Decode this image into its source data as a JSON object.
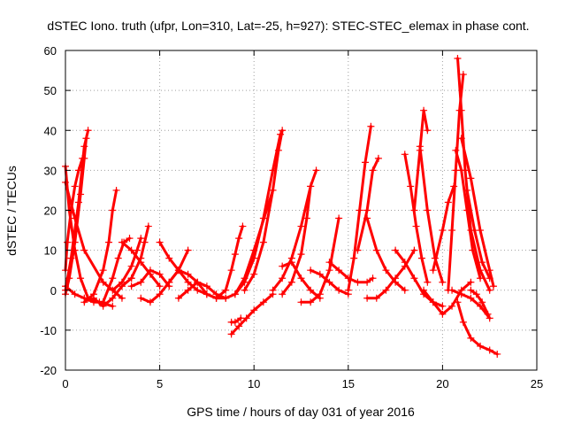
{
  "chart_data": {
    "type": "scatter",
    "title": "dSTEC Iono. truth (ufpr, Lon=310, Lat=-25, h=927): STEC-STEC_elemax in phase cont.",
    "xlabel": "GPS time / hours of day 031 of year 2016",
    "ylabel": "dSTEC  / TECUs",
    "xlim": [
      0,
      25
    ],
    "ylim": [
      -20,
      60
    ],
    "xticks": [
      0,
      5,
      10,
      15,
      20,
      25
    ],
    "yticks": [
      -20,
      -10,
      0,
      10,
      20,
      30,
      40,
      50,
      60
    ],
    "grid": true,
    "legend": "none",
    "marker": "+",
    "color": "#ff0000",
    "series": [
      {
        "x": [
          0.0,
          0.3,
          0.7,
          1.0,
          1.2
        ],
        "y": [
          0,
          8,
          22,
          36,
          40
        ]
      },
      {
        "x": [
          0.0,
          0.2,
          0.5,
          0.8,
          1.0,
          1.1
        ],
        "y": [
          -1,
          3,
          12,
          24,
          33,
          38
        ]
      },
      {
        "x": [
          0.0,
          0.1,
          0.3,
          0.5,
          0.7,
          0.9
        ],
        "y": [
          5,
          12,
          20,
          26,
          30,
          33
        ]
      },
      {
        "x": [
          0.0,
          0.2,
          0.5,
          0.8,
          1.2,
          1.8,
          2.5
        ],
        "y": [
          31,
          20,
          10,
          3,
          -2,
          -3,
          -4
        ]
      },
      {
        "x": [
          0.0,
          0.5,
          1.0,
          2.0,
          3.0
        ],
        "y": [
          27,
          18,
          10,
          2,
          -2
        ]
      },
      {
        "x": [
          0.0,
          0.5,
          1.0,
          1.5,
          2.0
        ],
        "y": [
          1,
          -1,
          -2,
          -3,
          -3
        ]
      },
      {
        "x": [
          1.0,
          1.5,
          2.0,
          2.3,
          2.5,
          2.7
        ],
        "y": [
          -3,
          -1,
          5,
          12,
          20,
          25
        ]
      },
      {
        "x": [
          1.5,
          2.0,
          2.5,
          3.0,
          3.5
        ],
        "y": [
          -2,
          -4,
          -2,
          1,
          3
        ]
      },
      {
        "x": [
          2.0,
          2.5,
          2.8,
          3.1,
          3.4
        ],
        "y": [
          -3,
          3,
          8,
          12,
          13
        ]
      },
      {
        "x": [
          2.5,
          3.0,
          3.5,
          3.8,
          4.0
        ],
        "y": [
          0,
          2,
          6,
          10,
          13
        ]
      },
      {
        "x": [
          3.0,
          3.5,
          4.0,
          4.5,
          5.0
        ],
        "y": [
          12,
          10,
          7,
          4,
          1
        ]
      },
      {
        "x": [
          3.5,
          4.0,
          4.2,
          4.4
        ],
        "y": [
          3,
          8,
          12,
          16
        ]
      },
      {
        "x": [
          3.5,
          4.0,
          4.5,
          5.0,
          5.5
        ],
        "y": [
          1,
          2,
          5,
          4,
          1
        ]
      },
      {
        "x": [
          4.0,
          4.5,
          5.0,
          5.5,
          6.0,
          6.5
        ],
        "y": [
          -2,
          -3,
          -1,
          2,
          5,
          10
        ]
      },
      {
        "x": [
          5.0,
          5.5,
          6.0,
          6.5,
          7.0,
          7.5
        ],
        "y": [
          12,
          8,
          5,
          2,
          0,
          -1
        ]
      },
      {
        "x": [
          5.5,
          6.0,
          6.5,
          7.0,
          7.5,
          8.0
        ],
        "y": [
          2,
          5,
          4,
          2,
          -1,
          -2
        ]
      },
      {
        "x": [
          6.0,
          6.5,
          7.0,
          7.5,
          8.0,
          8.5
        ],
        "y": [
          -2,
          0,
          2,
          1,
          -1,
          -2
        ]
      },
      {
        "x": [
          7.5,
          8.0,
          8.5,
          9.0,
          9.5,
          10.0,
          11.0
        ],
        "y": [
          -1,
          -2,
          -2,
          -1,
          3,
          10,
          25
        ]
      },
      {
        "x": [
          8.0,
          8.5,
          8.8,
          9.0,
          9.2,
          9.4
        ],
        "y": [
          -2,
          0,
          5,
          9,
          13,
          16
        ]
      },
      {
        "x": [
          8.8,
          9.2,
          9.6,
          10.0,
          10.5,
          11.0
        ],
        "y": [
          -11,
          -9,
          -7,
          -5,
          -3,
          -1
        ]
      },
      {
        "x": [
          8.8,
          9.0,
          9.3
        ],
        "y": [
          -8,
          -8,
          -7
        ]
      },
      {
        "x": [
          9.5,
          10.0,
          10.5,
          11.0,
          11.3,
          11.5
        ],
        "y": [
          0,
          4,
          12,
          25,
          35,
          40
        ]
      },
      {
        "x": [
          9.0,
          9.5,
          10.0,
          10.5,
          11.0,
          11.4
        ],
        "y": [
          -1,
          2,
          8,
          18,
          30,
          39
        ]
      },
      {
        "x": [
          11.0,
          11.5,
          12.0,
          12.5,
          13.0,
          13.3
        ],
        "y": [
          0,
          3,
          8,
          16,
          26,
          30
        ]
      },
      {
        "x": [
          11.5,
          12.0,
          12.5,
          12.8,
          13.0
        ],
        "y": [
          -1,
          2,
          9,
          18,
          26
        ]
      },
      {
        "x": [
          11.5,
          12.0,
          12.5,
          13.0,
          13.5
        ],
        "y": [
          6,
          7,
          3,
          0,
          -2
        ]
      },
      {
        "x": [
          12.5,
          13.0,
          13.5,
          14.0,
          14.5
        ],
        "y": [
          -3,
          -3,
          -1,
          5,
          18
        ]
      },
      {
        "x": [
          13.0,
          13.5,
          14.0,
          14.5,
          15.0
        ],
        "y": [
          5,
          4,
          2,
          0,
          -1
        ]
      },
      {
        "x": [
          14.0,
          14.5,
          15.0,
          15.5,
          16.0,
          16.3
        ],
        "y": [
          7,
          5,
          3,
          2,
          2,
          3
        ]
      },
      {
        "x": [
          15.0,
          15.3,
          15.6,
          15.9,
          16.2
        ],
        "y": [
          0,
          8,
          20,
          32,
          41
        ]
      },
      {
        "x": [
          15.5,
          16.0,
          16.3,
          16.6
        ],
        "y": [
          10,
          20,
          30,
          33
        ]
      },
      {
        "x": [
          16.0,
          16.5,
          17.0,
          17.5,
          18.0
        ],
        "y": [
          18,
          10,
          5,
          2,
          0
        ]
      },
      {
        "x": [
          16.0,
          16.5,
          17.0,
          17.5,
          18.0,
          18.5
        ],
        "y": [
          -2,
          -2,
          0,
          3,
          6,
          10
        ]
      },
      {
        "x": [
          17.5,
          18.0,
          18.5,
          19.0,
          19.5,
          20.0
        ],
        "y": [
          10,
          7,
          3,
          -1,
          -3,
          -4
        ]
      },
      {
        "x": [
          18.0,
          18.3,
          18.6,
          18.9,
          19.2
        ],
        "y": [
          34,
          26,
          16,
          8,
          2
        ]
      },
      {
        "x": [
          18.5,
          18.8,
          19.0,
          19.2
        ],
        "y": [
          20,
          35,
          45,
          40
        ]
      },
      {
        "x": [
          18.8,
          19.2,
          19.6,
          20.0
        ],
        "y": [
          36,
          20,
          8,
          2
        ]
      },
      {
        "x": [
          19.0,
          19.5,
          20.0,
          20.5,
          21.0,
          21.5
        ],
        "y": [
          0,
          -3,
          -6,
          -4,
          0,
          2
        ]
      },
      {
        "x": [
          19.5,
          20.0,
          20.3,
          20.6
        ],
        "y": [
          5,
          15,
          22,
          26
        ]
      },
      {
        "x": [
          20.3,
          20.5,
          20.7,
          20.9,
          21.1
        ],
        "y": [
          0,
          15,
          30,
          45,
          54
        ]
      },
      {
        "x": [
          20.8,
          21.0,
          21.2,
          21.5,
          22.0,
          22.5
        ],
        "y": [
          58,
          45,
          30,
          15,
          5,
          0
        ]
      },
      {
        "x": [
          20.7,
          21.0,
          21.3,
          21.6,
          22.0
        ],
        "y": [
          35,
          30,
          20,
          10,
          3
        ]
      },
      {
        "x": [
          21.0,
          21.5,
          22.0,
          22.5,
          22.7
        ],
        "y": [
          38,
          28,
          15,
          5,
          1
        ]
      },
      {
        "x": [
          21.3,
          21.7,
          22.1,
          22.5
        ],
        "y": [
          25,
          15,
          7,
          3
        ]
      },
      {
        "x": [
          20.5,
          21.0,
          21.5,
          22.0,
          22.5
        ],
        "y": [
          0,
          -1,
          -2,
          -4,
          -7
        ]
      },
      {
        "x": [
          20.8,
          21.1,
          21.5,
          22.0,
          22.5,
          22.9
        ],
        "y": [
          -3,
          -8,
          -12,
          -14,
          -15,
          -16
        ]
      },
      {
        "x": [
          21.5,
          21.8,
          22.1,
          22.4
        ],
        "y": [
          0,
          -1,
          -3,
          -6
        ]
      }
    ]
  }
}
